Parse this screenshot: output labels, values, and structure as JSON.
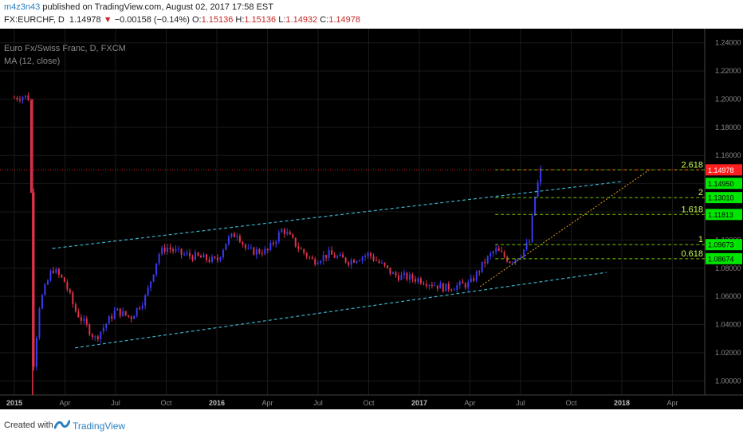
{
  "header": {
    "author": "m4z3n43",
    "published": "published on TradingView.com, August 02, 2017 17:58 EST",
    "symbol": "FX:EURCHF, D",
    "last": "1.14978",
    "change_arrow": "▼",
    "change": "−0.00158 (−0.14%)",
    "o_label": "O:",
    "o": "1.15136",
    "h_label": "H:",
    "h": "1.15136",
    "l_label": "L:",
    "l": "1.14932",
    "c_label": "C:",
    "c": "1.14978"
  },
  "overlay": {
    "instrument": "Euro Fx/Swiss Franc, D, FXCM",
    "indicator": "MA (12, close)"
  },
  "footer": {
    "created_with": "Created with",
    "brand": "TradingView"
  },
  "colors": {
    "background": "#000000",
    "grid": "#1a1a1a",
    "axis_text": "#8a8a8a",
    "candle_up": "#3a3af2",
    "candle_down": "#e0334a",
    "channel": "#3ab0c8",
    "fib": "#7ec800",
    "fib_label": "#c8ff50",
    "trendline": "#e0a020",
    "price_line": "#e02020",
    "tag_green": "#00e600",
    "tag_red": "#ff1f1f"
  },
  "chart_data": {
    "type": "candlestick",
    "symbol": "EURCHF",
    "timeframe": "D",
    "ylim": [
      0.99,
      1.25
    ],
    "y_ticks": [
      "1.00000",
      "1.02000",
      "1.04000",
      "1.06000",
      "1.08000",
      "1.10000",
      "1.12000",
      "1.14000",
      "1.16000",
      "1.18000",
      "1.20000",
      "1.22000",
      "1.24000"
    ],
    "x_ticks": [
      "2015",
      "Apr",
      "Jul",
      "Oct",
      "2016",
      "Apr",
      "Jul",
      "Oct",
      "2017",
      "Apr",
      "Jul",
      "Oct",
      "2018",
      "Apr"
    ],
    "x_ticks_bold": [
      "2015",
      "2016",
      "2017",
      "2018"
    ],
    "price_path": [
      {
        "t": 0.0,
        "v": 1.201
      },
      {
        "t": 0.2,
        "v": 1.202
      },
      {
        "t": 0.32,
        "v": 1.2
      },
      {
        "t": 0.35,
        "v": 1.0
      },
      {
        "t": 0.5,
        "v": 1.055
      },
      {
        "t": 0.75,
        "v": 1.08
      },
      {
        "t": 1.0,
        "v": 1.07
      },
      {
        "t": 1.2,
        "v": 1.05
      },
      {
        "t": 1.6,
        "v": 1.03
      },
      {
        "t": 2.0,
        "v": 1.05
      },
      {
        "t": 2.3,
        "v": 1.045
      },
      {
        "t": 2.6,
        "v": 1.06
      },
      {
        "t": 2.85,
        "v": 1.09
      },
      {
        "t": 3.0,
        "v": 1.095
      },
      {
        "t": 3.3,
        "v": 1.09
      },
      {
        "t": 3.6,
        "v": 1.088
      },
      {
        "t": 4.0,
        "v": 1.085
      },
      {
        "t": 4.2,
        "v": 1.1
      },
      {
        "t": 4.4,
        "v": 1.105
      },
      {
        "t": 4.6,
        "v": 1.092
      },
      {
        "t": 5.0,
        "v": 1.092
      },
      {
        "t": 5.3,
        "v": 1.108
      },
      {
        "t": 5.6,
        "v": 1.095
      },
      {
        "t": 5.9,
        "v": 1.085
      },
      {
        "t": 6.2,
        "v": 1.09
      },
      {
        "t": 6.6,
        "v": 1.085
      },
      {
        "t": 7.0,
        "v": 1.09
      },
      {
        "t": 7.5,
        "v": 1.075
      },
      {
        "t": 8.0,
        "v": 1.072
      },
      {
        "t": 8.5,
        "v": 1.066
      },
      {
        "t": 9.0,
        "v": 1.069
      },
      {
        "t": 9.3,
        "v": 1.085
      },
      {
        "t": 9.5,
        "v": 1.093
      },
      {
        "t": 9.8,
        "v": 1.085
      },
      {
        "t": 10.0,
        "v": 1.09
      },
      {
        "t": 10.2,
        "v": 1.1
      },
      {
        "t": 10.25,
        "v": 1.125
      },
      {
        "t": 10.4,
        "v": 1.15
      }
    ],
    "last_price": 1.14978,
    "right_tags": [
      {
        "label": "1.14978",
        "value": 1.14978,
        "color": "red"
      },
      {
        "label": "1.14950",
        "value": 1.1402,
        "color": "green"
      },
      {
        "label": "1.13010",
        "value": 1.1301,
        "color": "green"
      },
      {
        "label": "1.11813",
        "value": 1.11813,
        "color": "green"
      },
      {
        "label": "1.09673",
        "value": 1.09673,
        "color": "green"
      },
      {
        "label": "1.08674",
        "value": 1.08674,
        "color": "green"
      }
    ],
    "fib_levels": [
      {
        "label": "2.618",
        "value": 1.14978
      },
      {
        "label": "2",
        "value": 1.1301
      },
      {
        "label": "1.618",
        "value": 1.11813
      },
      {
        "label": "1",
        "value": 1.09673
      },
      {
        "label": "0.618",
        "value": 1.08674
      }
    ],
    "channel": {
      "upper": [
        {
          "t": 0.75,
          "v": 1.094
        },
        {
          "t": 12.0,
          "v": 1.1415
        }
      ],
      "lower": [
        {
          "t": 1.2,
          "v": 1.0235
        },
        {
          "t": 11.7,
          "v": 1.077
        }
      ]
    },
    "trendline": [
      {
        "t": 9.2,
        "v": 1.067
      },
      {
        "t": 12.55,
        "v": 1.15
      }
    ]
  }
}
